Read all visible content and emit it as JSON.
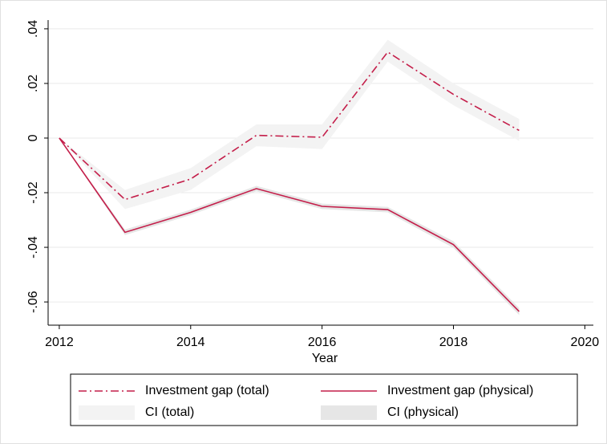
{
  "chart_data": {
    "type": "line",
    "x_label": "Year",
    "x": [
      2012,
      2013,
      2014,
      2015,
      2016,
      2017,
      2018,
      2019
    ],
    "series": [
      {
        "name": "Investment gap (total)",
        "color": "#c41e4a",
        "dash": "dashdot",
        "values": [
          0,
          -0.0225,
          -0.015,
          0.001,
          0.0003,
          0.0315,
          0.016,
          0.0028
        ]
      },
      {
        "name": "Investment gap (physical)",
        "color": "#c41e4a",
        "dash": "solid",
        "values": [
          0,
          -0.0345,
          -0.0272,
          -0.0185,
          -0.025,
          -0.0262,
          -0.039,
          -0.0635
        ]
      }
    ],
    "bands": [
      {
        "name": "CI (total)",
        "color": "#f3f3f3",
        "lower": [
          0,
          -0.026,
          -0.019,
          -0.003,
          -0.004,
          0.028,
          0.012,
          -0.001
        ],
        "upper": [
          0,
          -0.019,
          -0.011,
          0.005,
          0.005,
          0.036,
          0.02,
          0.007
        ]
      },
      {
        "name": "CI (physical)",
        "color": "#e6e6e6",
        "lower": [
          0,
          -0.0355,
          -0.0282,
          -0.0195,
          -0.026,
          -0.0272,
          -0.0402,
          -0.0648
        ],
        "upper": [
          0,
          -0.0335,
          -0.0262,
          -0.0175,
          -0.024,
          -0.0252,
          -0.0378,
          -0.0622
        ]
      }
    ],
    "xlim": [
      2011.83,
      2020.13
    ],
    "xticks": [
      2012,
      2014,
      2016,
      2018,
      2020
    ],
    "ylim": [
      -0.0685,
      0.0432
    ],
    "yticks": [
      {
        "value": -0.06,
        "label": "-.06"
      },
      {
        "value": -0.04,
        "label": "-.04"
      },
      {
        "value": -0.02,
        "label": "-.02"
      },
      0,
      {
        "value": 0.02,
        "label": ".02"
      },
      {
        "value": 0.04,
        "label": ".04"
      }
    ],
    "grid": true,
    "legend": "bottom"
  }
}
